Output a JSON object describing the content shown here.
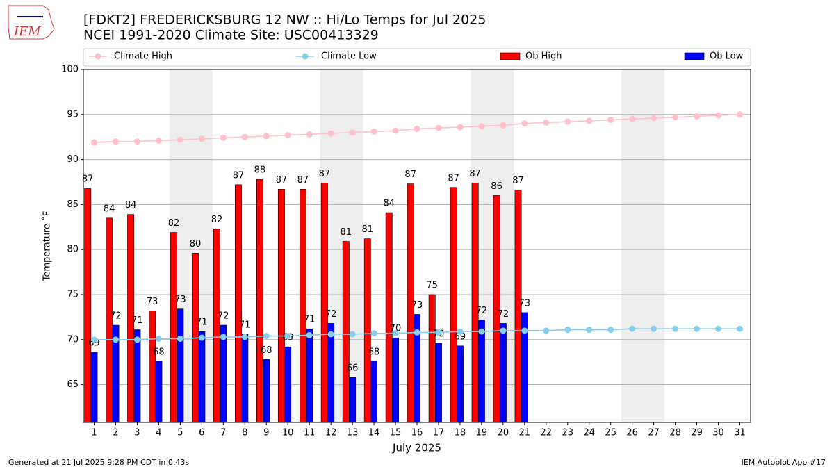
{
  "chart_data": {
    "type": "bar",
    "title": "[FDKT2] FREDERICKSBURG 12 NW :: Hi/Lo Temps for Jul 2025",
    "subtitle": "NCEI 1991-2020 Climate Site: USC00413329",
    "logo_text": "IEM",
    "xlabel": "July 2025",
    "ylabel": "Temperature ˚F",
    "footer_left": "Generated at 21 Jul 2025 9:28 PM CDT in 0.43s",
    "footer_right": "IEM Autoplot App #17",
    "categories": [
      "1",
      "2",
      "3",
      "4",
      "5",
      "6",
      "7",
      "8",
      "9",
      "10",
      "11",
      "12",
      "13",
      "14",
      "15",
      "16",
      "17",
      "18",
      "19",
      "20",
      "21",
      "22",
      "23",
      "24",
      "25",
      "26",
      "27",
      "28",
      "29",
      "30",
      "31"
    ],
    "shaded_categories": [
      "5",
      "6",
      "12",
      "13",
      "19",
      "20",
      "26",
      "27"
    ],
    "ylim": [
      60.8,
      100
    ],
    "yticks": [
      65,
      70,
      75,
      80,
      85,
      90,
      95,
      100
    ],
    "grid": true,
    "series": [
      {
        "name": "Climate High",
        "kind": "line",
        "color": "#ffc0cb",
        "values": [
          91.9,
          92.0,
          92.0,
          92.1,
          92.2,
          92.3,
          92.4,
          92.5,
          92.6,
          92.7,
          92.8,
          92.9,
          93.0,
          93.1,
          93.2,
          93.4,
          93.5,
          93.6,
          93.7,
          93.8,
          94.0,
          94.1,
          94.2,
          94.3,
          94.4,
          94.5,
          94.6,
          94.7,
          94.8,
          94.9,
          95.0
        ]
      },
      {
        "name": "Climate Low",
        "kind": "line",
        "color": "#87ceeb",
        "values": [
          70.0,
          70.0,
          70.0,
          70.1,
          70.1,
          70.2,
          70.3,
          70.3,
          70.4,
          70.4,
          70.5,
          70.6,
          70.6,
          70.7,
          70.7,
          70.8,
          70.8,
          70.9,
          70.9,
          71.0,
          71.0,
          71.0,
          71.1,
          71.1,
          71.1,
          71.2,
          71.2,
          71.2,
          71.2,
          71.2,
          71.2
        ]
      },
      {
        "name": "Ob High",
        "kind": "bar",
        "color": "#ff0000",
        "values": [
          86.8,
          83.5,
          83.9,
          73.2,
          81.9,
          79.6,
          82.3,
          87.2,
          87.8,
          86.7,
          86.7,
          87.4,
          80.9,
          81.2,
          84.1,
          87.3,
          75.0,
          86.9,
          87.4,
          86.0,
          86.6,
          null,
          null,
          null,
          null,
          null,
          null,
          null,
          null,
          null,
          null
        ],
        "value_labels": [
          "87",
          "84",
          "84",
          "73",
          "82",
          "80",
          "82",
          "87",
          "88",
          "87",
          "87",
          "87",
          "81",
          "81",
          "84",
          "87",
          "75",
          "87",
          "87",
          "86",
          "87",
          null,
          null,
          null,
          null,
          null,
          null,
          null,
          null,
          null,
          null
        ]
      },
      {
        "name": "Ob Low",
        "kind": "bar",
        "color": "#0000ff",
        "values": [
          68.6,
          71.6,
          71.1,
          67.6,
          73.4,
          70.9,
          71.6,
          70.6,
          67.8,
          69.2,
          71.2,
          71.8,
          65.8,
          67.6,
          70.2,
          72.8,
          69.6,
          69.3,
          72.2,
          71.8,
          73.0,
          null,
          null,
          null,
          null,
          null,
          null,
          null,
          null,
          null,
          null
        ],
        "value_labels": [
          "69",
          "72",
          "71",
          "68",
          "73",
          "71",
          "72",
          "71",
          "68",
          "69",
          "71",
          "72",
          "66",
          "68",
          "70",
          "73",
          "70",
          "69",
          "72",
          "72",
          "73",
          null,
          null,
          null,
          null,
          null,
          null,
          null,
          null,
          null,
          null
        ]
      }
    ]
  }
}
